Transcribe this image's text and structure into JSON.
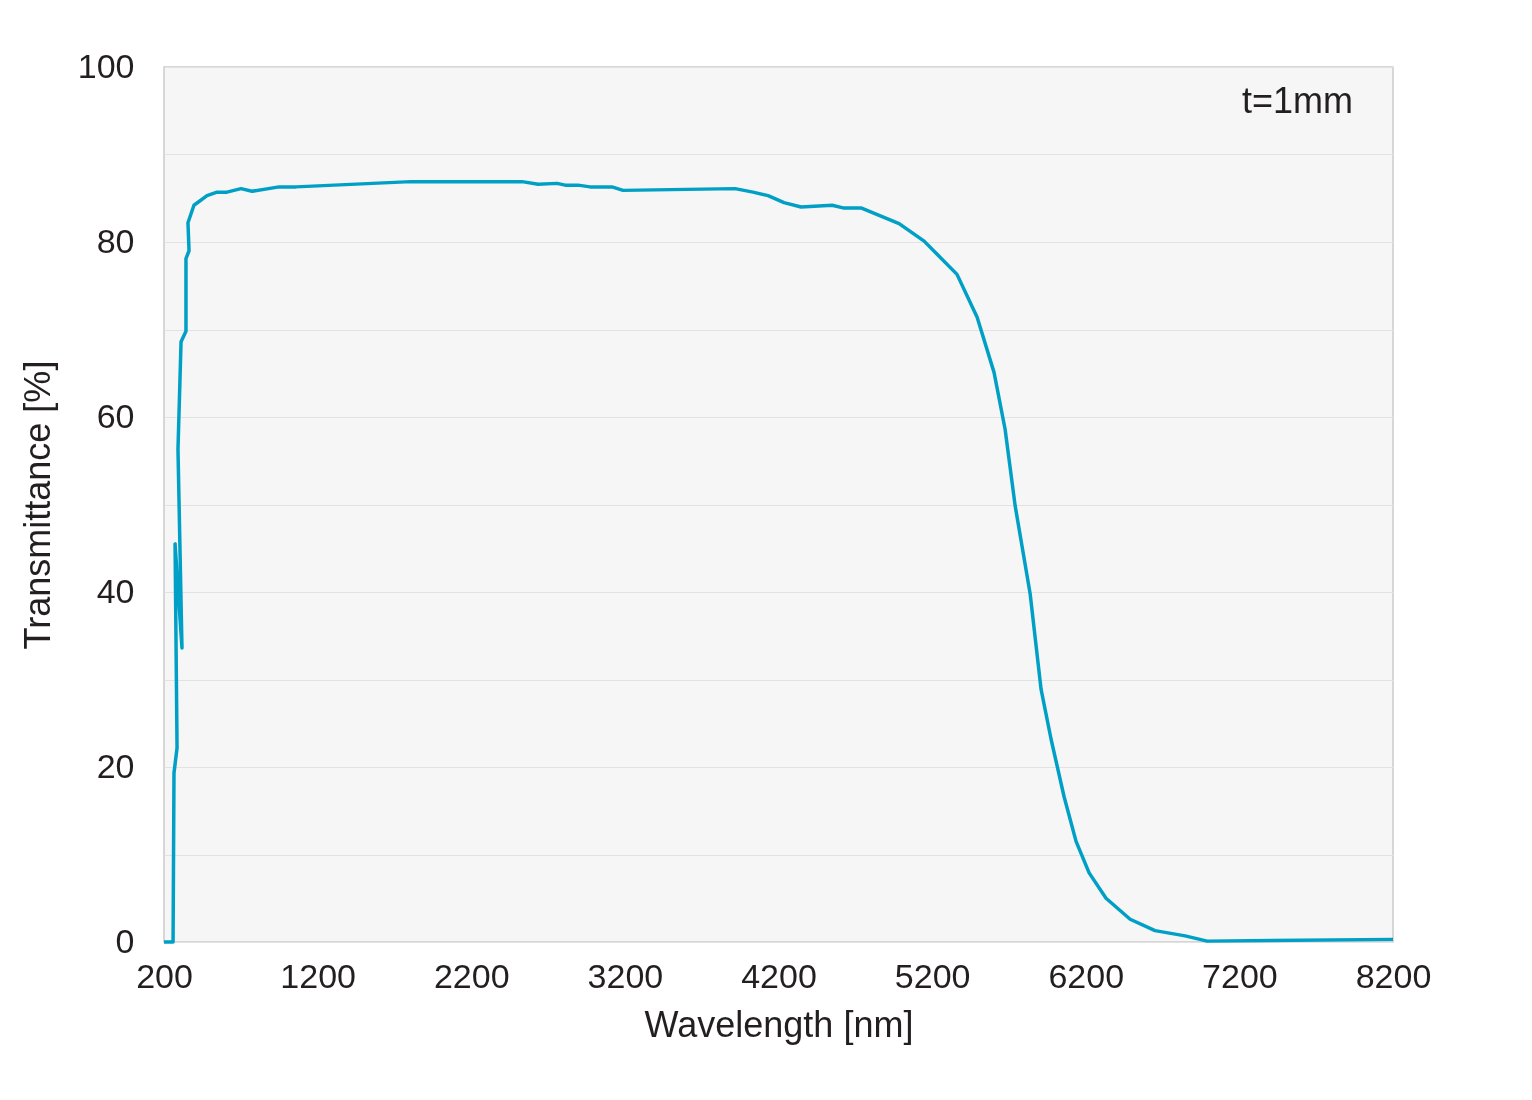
{
  "chart_data": {
    "type": "line",
    "xlabel": "Wavelength [nm]",
    "ylabel": "Transmittance [%]",
    "annotations": [
      "t=1mm"
    ],
    "xlim": [
      200,
      8200
    ],
    "xticks": [
      200,
      1200,
      2200,
      3200,
      4200,
      5200,
      6200,
      7200,
      8200
    ],
    "ylim": [
      0,
      100
    ],
    "yticks": [
      0,
      {
        "value": 10,
        "label": null
      },
      20,
      {
        "value": 30,
        "label": null
      },
      40,
      {
        "value": 50,
        "label": null
      },
      60,
      {
        "value": 70,
        "label": null
      },
      80,
      {
        "value": 90,
        "label": null
      },
      100
    ],
    "grid": "y",
    "marker": "none",
    "line_style": "solid",
    "series": [
      {
        "color": "#00a0c6",
        "x": [
          200,
          259,
          265,
          285,
          272,
          317,
          291,
          311,
          343,
          343,
          363,
          356,
          395,
          480,
          545,
          610,
          701,
          773,
          949,
          1059,
          1808,
          2531,
          2635,
          2758,
          2811,
          2895,
          2973,
          3116,
          3188,
          3917,
          4034,
          4132,
          4236,
          4347,
          4549,
          4620,
          4737,
          4985,
          5148,
          5362,
          5493,
          5603,
          5675,
          5740,
          5838,
          5909,
          5974,
          6059,
          6137,
          6222,
          6332,
          6489,
          6651,
          6847,
          6990,
          8200
        ],
        "values": [
          0,
          0,
          19.3,
          22.2,
          45.5,
          33.6,
          56.3,
          68.6,
          69.8,
          78.1,
          79.0,
          82.2,
          84.2,
          85.3,
          85.7,
          85.7,
          86.1,
          85.8,
          86.3,
          86.3,
          86.9,
          86.9,
          86.6,
          86.7,
          86.5,
          86.5,
          86.3,
          86.3,
          85.9,
          86.1,
          85.7,
          85.3,
          84.5,
          84.0,
          84.2,
          83.9,
          83.9,
          82.1,
          80.1,
          76.3,
          71.4,
          65.1,
          58.6,
          49.9,
          39.8,
          28.9,
          23.2,
          16.6,
          11.5,
          7.9,
          5.0,
          2.6,
          1.3,
          0.7,
          0.1,
          0.3
        ]
      }
    ]
  }
}
